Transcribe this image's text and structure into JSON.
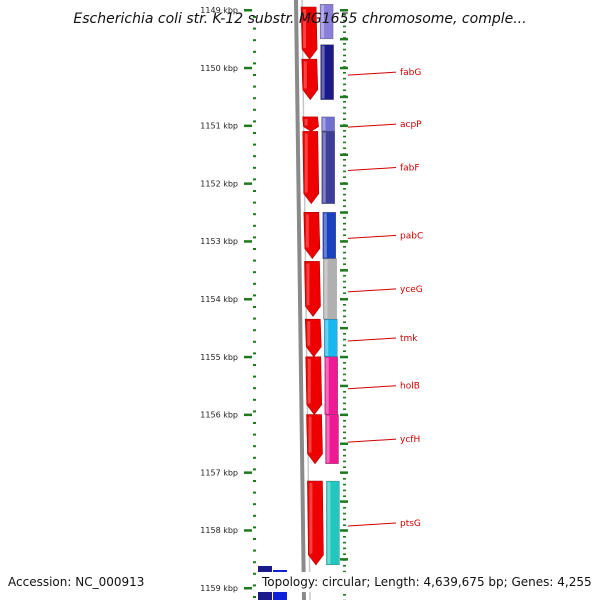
{
  "title": "Escherichia coli str. K-12 substr. MG1655 chromosome, comple...",
  "ticks": [
    {
      "label": "1149 kbp",
      "kbp": 1149
    },
    {
      "label": "1150 kbp",
      "kbp": 1150
    },
    {
      "label": "1151 kbp",
      "kbp": 1151
    },
    {
      "label": "1152 kbp",
      "kbp": 1152
    },
    {
      "label": "1153 kbp",
      "kbp": 1153
    },
    {
      "label": "1154 kbp",
      "kbp": 1154
    },
    {
      "label": "1155 kbp",
      "kbp": 1155
    },
    {
      "label": "1156 kbp",
      "kbp": 1156
    },
    {
      "label": "1157 kbp",
      "kbp": 1157
    },
    {
      "label": "1158 kbp",
      "kbp": 1158
    },
    {
      "label": "1159 kbp",
      "kbp": 1159
    }
  ],
  "genes": [
    {
      "name": "",
      "start_kbp": 1148.9,
      "end_kbp": 1149.5,
      "color": "#8a7fd8"
    },
    {
      "name": "fabG",
      "start_kbp": 1149.6,
      "end_kbp": 1150.55,
      "color": "#1a1a8a"
    },
    {
      "name": "acpP",
      "start_kbp": 1150.85,
      "end_kbp": 1151.1,
      "color": "#6f6fd0"
    },
    {
      "name": "fabF",
      "start_kbp": 1151.1,
      "end_kbp": 1152.35,
      "color": "#3d3d9a"
    },
    {
      "name": "pabC",
      "start_kbp": 1152.5,
      "end_kbp": 1153.3,
      "color": "#1a40c0"
    },
    {
      "name": "yceG",
      "start_kbp": 1153.3,
      "end_kbp": 1154.35,
      "color": "#b0b0b0"
    },
    {
      "name": "tmk",
      "start_kbp": 1154.35,
      "end_kbp": 1155.0,
      "color": "#19b7f0"
    },
    {
      "name": "holB",
      "start_kbp": 1155.0,
      "end_kbp": 1156.0,
      "color": "#ee1a94"
    },
    {
      "name": "ycfH",
      "start_kbp": 1156.0,
      "end_kbp": 1156.85,
      "color": "#ee1a94"
    },
    {
      "name": "ptsG",
      "start_kbp": 1157.15,
      "end_kbp": 1158.6,
      "color": "#20c8c0"
    }
  ],
  "colors": {
    "forward_arrow": "#ee0000",
    "tick_green": "#1e7a1e",
    "backbone": "#8a8a8a",
    "label_red": "#d10000"
  },
  "footer": {
    "accession": "Accession: NC_000913",
    "topology": "Topology: circular; Length: 4,639,675 bp; Genes: 4,255"
  }
}
